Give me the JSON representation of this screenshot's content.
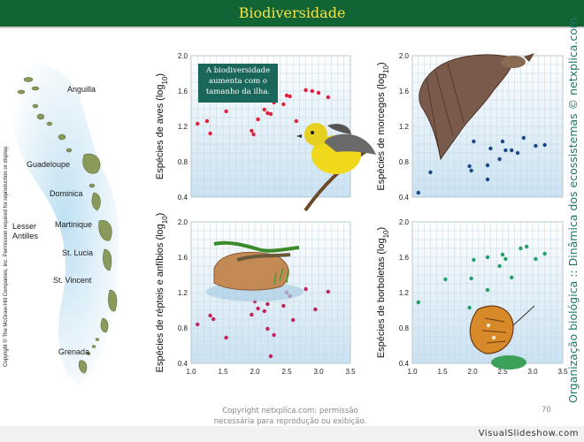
{
  "slide": {
    "title": "Biodiversidade",
    "copyright_vertical": "Copyright © The McGraw-Hill Companies, Inc. Permission required for reproduction or display.",
    "side_text": "Organização biológica :: Dinâmica dos ecossistemas © netxplica.com",
    "footer": [
      "Copyright netxplica.com: permissão",
      "necessária para reprodução ou exibição."
    ],
    "page_number": "70",
    "watermark": "VisualSlideshow.com",
    "callout": [
      "A biodiversidade",
      "aumenta com o",
      "tamanho da ilha."
    ]
  },
  "map_labels": [
    {
      "key": "anguilla",
      "text": "Anguilla"
    },
    {
      "key": "guadeloupe",
      "text": "Guadeloupe"
    },
    {
      "key": "dominica",
      "text": "Dominica"
    },
    {
      "key": "lesser1",
      "text": "Lesser"
    },
    {
      "key": "lesser2",
      "text": "Antilles"
    },
    {
      "key": "martinique",
      "text": "Martinique"
    },
    {
      "key": "stlucia",
      "text": "St. Lucia"
    },
    {
      "key": "stvincent",
      "text": "St. Vincent"
    },
    {
      "key": "grenada",
      "text": "Grenada"
    }
  ],
  "colors": {
    "title_bg": "#116434",
    "title_text": "#f4e34a",
    "plot_top": "#ffffff",
    "plot_bottom": "#cbe2f2",
    "side_text": "#1a7a6a"
  },
  "chart_data": [
    {
      "id": "birds",
      "type": "scatter",
      "color": "#e0203a",
      "ylabel_parts": [
        "Espécies de aves (log",
        "10",
        ")"
      ],
      "xlim": [
        1.0,
        3.5
      ],
      "ylim": [
        0.4,
        2.0
      ],
      "xticks": [],
      "yticks": [
        "0.4",
        "0.8",
        "1.2",
        "1.6",
        "2.0"
      ],
      "x": [
        1.1,
        1.25,
        1.3,
        1.55,
        1.95,
        1.98,
        2.05,
        2.15,
        2.2,
        2.25,
        2.3,
        2.45,
        2.5,
        2.55,
        2.65,
        2.8,
        2.9,
        3.0,
        3.15
      ],
      "y": [
        1.23,
        1.26,
        1.12,
        1.37,
        1.15,
        1.11,
        1.28,
        1.39,
        1.35,
        1.34,
        1.47,
        1.45,
        1.55,
        1.54,
        1.26,
        1.61,
        1.6,
        1.58,
        1.53
      ]
    },
    {
      "id": "bats",
      "type": "scatter",
      "color": "#1a4a86",
      "ylabel_parts": [
        "Espécies de morcegos (log",
        "10",
        ")"
      ],
      "xlim": [
        1.0,
        3.5
      ],
      "ylim": [
        0.4,
        2.0
      ],
      "xticks": [],
      "yticks": [
        "0.4",
        "0.8",
        "1.2",
        "1.6",
        "2.0"
      ],
      "x": [
        1.1,
        1.3,
        1.95,
        1.98,
        2.02,
        2.25,
        2.25,
        2.3,
        2.45,
        2.5,
        2.55,
        2.65,
        2.75,
        2.85,
        3.05,
        3.2
      ],
      "y": [
        0.45,
        0.68,
        0.75,
        0.7,
        1.03,
        0.6,
        0.76,
        0.95,
        0.83,
        1.03,
        0.93,
        0.93,
        0.9,
        1.07,
        0.98,
        0.99
      ]
    },
    {
      "id": "reptiles",
      "type": "scatter",
      "color": "#c0245a",
      "ylabel_parts": [
        "Espécies de répteis e anfíbios (log",
        "10",
        ")"
      ],
      "xlim": [
        1.0,
        3.5
      ],
      "ylim": [
        0.4,
        2.0
      ],
      "xticks": [
        "1.0",
        "1.5",
        "2.0",
        "2.5",
        "3.0",
        "3.5"
      ],
      "yticks": [
        "0.4",
        "0.8",
        "1.2",
        "1.6",
        "2.0"
      ],
      "x": [
        1.1,
        1.3,
        1.35,
        1.55,
        1.95,
        2.0,
        2.05,
        2.15,
        2.2,
        2.2,
        2.25,
        2.3,
        2.45,
        2.5,
        2.55,
        2.6,
        2.8,
        2.95,
        3.15
      ],
      "y": [
        0.84,
        0.94,
        0.9,
        0.69,
        0.95,
        1.1,
        1.02,
        0.99,
        0.79,
        1.07,
        0.48,
        0.72,
        1.05,
        1.2,
        1.16,
        0.89,
        1.24,
        1.01,
        1.21
      ]
    },
    {
      "id": "butterflies",
      "type": "scatter",
      "color": "#23a06a",
      "ylabel_parts": [
        "Espécies de borboletas (log",
        "10",
        ")"
      ],
      "xlim": [
        1.0,
        3.5
      ],
      "ylim": [
        0.4,
        2.0
      ],
      "xticks": [
        "1.0",
        "1.5",
        "2.0",
        "2.5",
        "3.0",
        "3.5"
      ],
      "yticks": [
        "0.4",
        "0.8",
        "1.2",
        "1.6",
        "2.0"
      ],
      "x": [
        1.1,
        1.55,
        1.95,
        1.98,
        2.02,
        2.25,
        2.25,
        2.45,
        2.5,
        2.55,
        2.65,
        2.8,
        2.9,
        3.05,
        3.2
      ],
      "y": [
        1.09,
        1.35,
        1.03,
        1.36,
        1.57,
        1.23,
        1.6,
        1.5,
        1.63,
        1.58,
        1.37,
        1.7,
        1.72,
        1.58,
        1.64
      ]
    }
  ]
}
